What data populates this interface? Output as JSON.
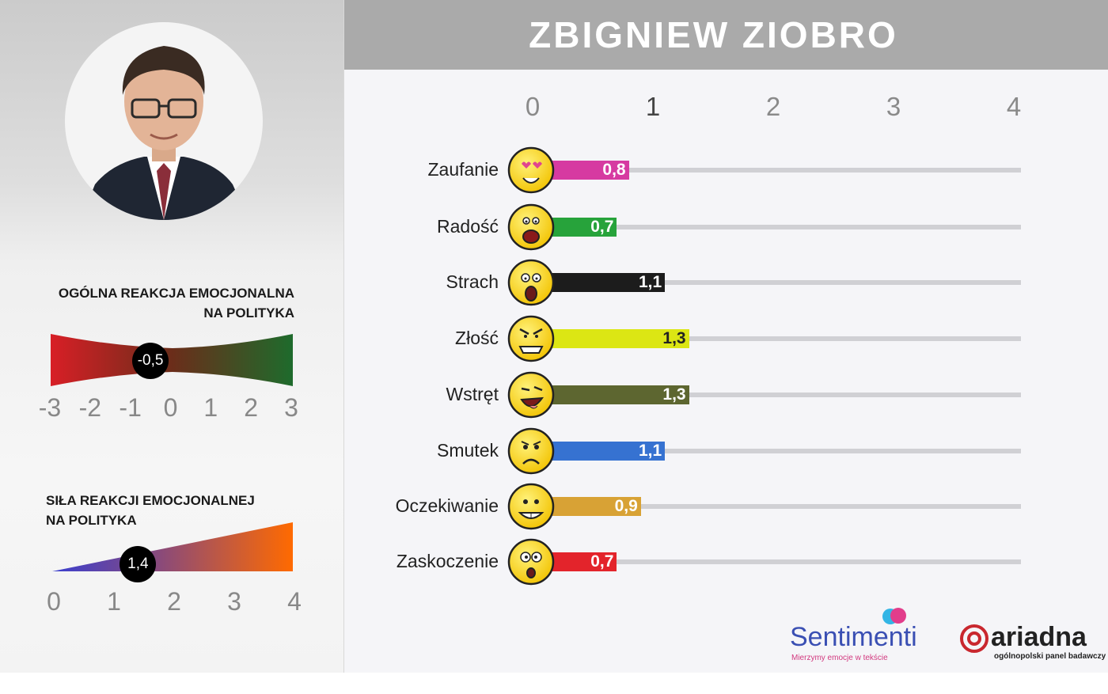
{
  "header": {
    "title": "ZBIGNIEW ZIOBRO"
  },
  "general_reaction": {
    "title_line1": "OGÓLNA REAKCJA EMOCJONALNA",
    "title_line2": "NA POLITYKA",
    "value": -0.5,
    "value_label": "-0,5",
    "ticks": [
      "-3",
      "-2",
      "-1",
      "0",
      "1",
      "2",
      "3"
    ],
    "range": [
      -3,
      3
    ],
    "colors": {
      "negative": "#d81f26",
      "positive": "#1e6b2c"
    }
  },
  "reaction_strength": {
    "title_line1": "SIŁA REAKCJI EMOCJONALNEJ",
    "title_line2": "NA POLITYKA",
    "value": 1.4,
    "value_label": "1,4",
    "ticks": [
      "0",
      "1",
      "2",
      "3",
      "4"
    ],
    "range": [
      0,
      4
    ],
    "colors": {
      "low": "#3a3fd0",
      "high": "#ff6a00"
    }
  },
  "chart_data": {
    "type": "bar",
    "orientation": "horizontal",
    "xlim": [
      0,
      4
    ],
    "x_ticks": [
      "0",
      "1",
      "2",
      "3",
      "4"
    ],
    "categories": [
      "Zaufanie",
      "Radość",
      "Strach",
      "Złość",
      "Wstręt",
      "Smutek",
      "Oczekiwanie",
      "Zaskoczenie"
    ],
    "values": [
      0.8,
      0.7,
      1.1,
      1.3,
      1.3,
      1.1,
      0.9,
      0.7
    ],
    "value_labels": [
      "0,8",
      "0,7",
      "1,1",
      "1,3",
      "1,3",
      "1,1",
      "0,9",
      "0,7"
    ],
    "colors": [
      "#d63aa1",
      "#27a33b",
      "#1c1c1c",
      "#dce614",
      "#5d6630",
      "#3672d1",
      "#d8a235",
      "#e3242b"
    ],
    "icons": [
      "love-smiley-icon",
      "laughing-smiley-icon",
      "scared-smiley-icon",
      "angry-smiley-icon",
      "disgusted-smiley-icon",
      "sad-smiley-icon",
      "grinning-smiley-icon",
      "surprised-smiley-icon"
    ]
  },
  "logos": {
    "sentimenti": {
      "name": "Sentimenti",
      "tagline": "Mierzymy emocje w tekście"
    },
    "ariadna": {
      "name": "ariadna",
      "tagline": "ogólnopolski panel badawczy"
    }
  }
}
